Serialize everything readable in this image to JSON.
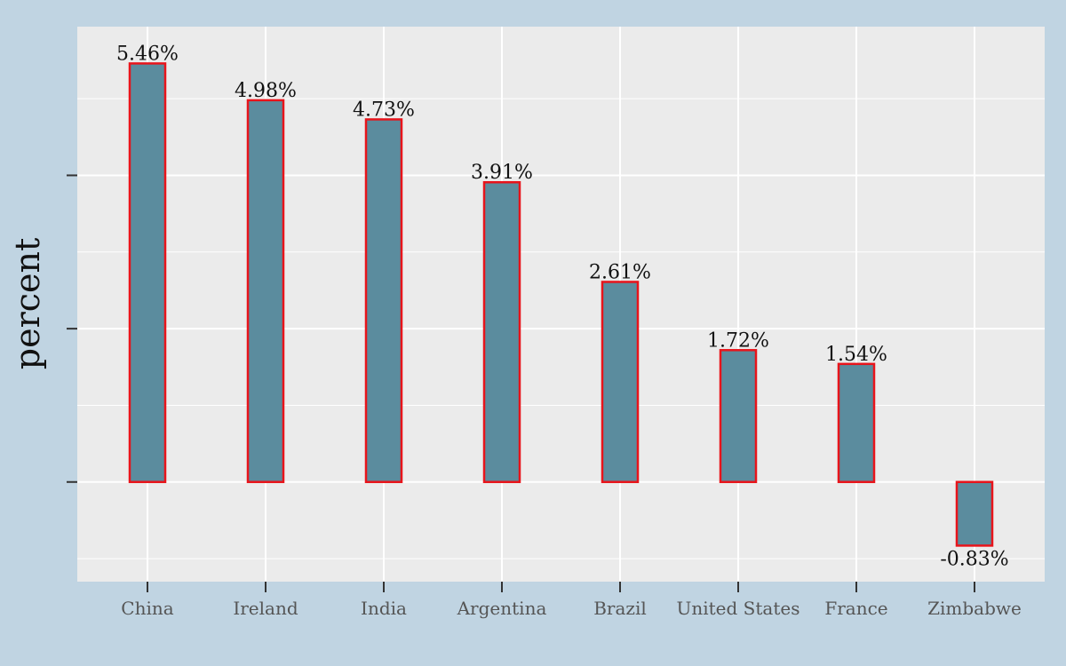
{
  "chart_data": {
    "type": "bar",
    "categories": [
      "China",
      "Ireland",
      "India",
      "Argentina",
      "Brazil",
      "United States",
      "France",
      "Zimbabwe"
    ],
    "values": [
      5.46,
      4.98,
      4.73,
      3.91,
      2.61,
      1.72,
      1.54,
      -0.83
    ],
    "value_labels": [
      "5.46%",
      "4.98%",
      "4.73%",
      "3.91%",
      "2.61%",
      "1.72%",
      "1.54%",
      "-0.83%"
    ],
    "title": "",
    "xlabel": "",
    "ylabel": "percent",
    "ylim": [
      -1.3,
      5.94
    ],
    "y_ticks": [
      0,
      2,
      4
    ],
    "y_tick_labels_visible": false,
    "grid": true,
    "colors": {
      "page_background": "#c0d4e2",
      "panel_background": "#ebebeb",
      "grid": "#ffffff",
      "bar_fill": "#5b8c9e",
      "bar_outline": "#e8141b",
      "tick": "#333333"
    }
  }
}
